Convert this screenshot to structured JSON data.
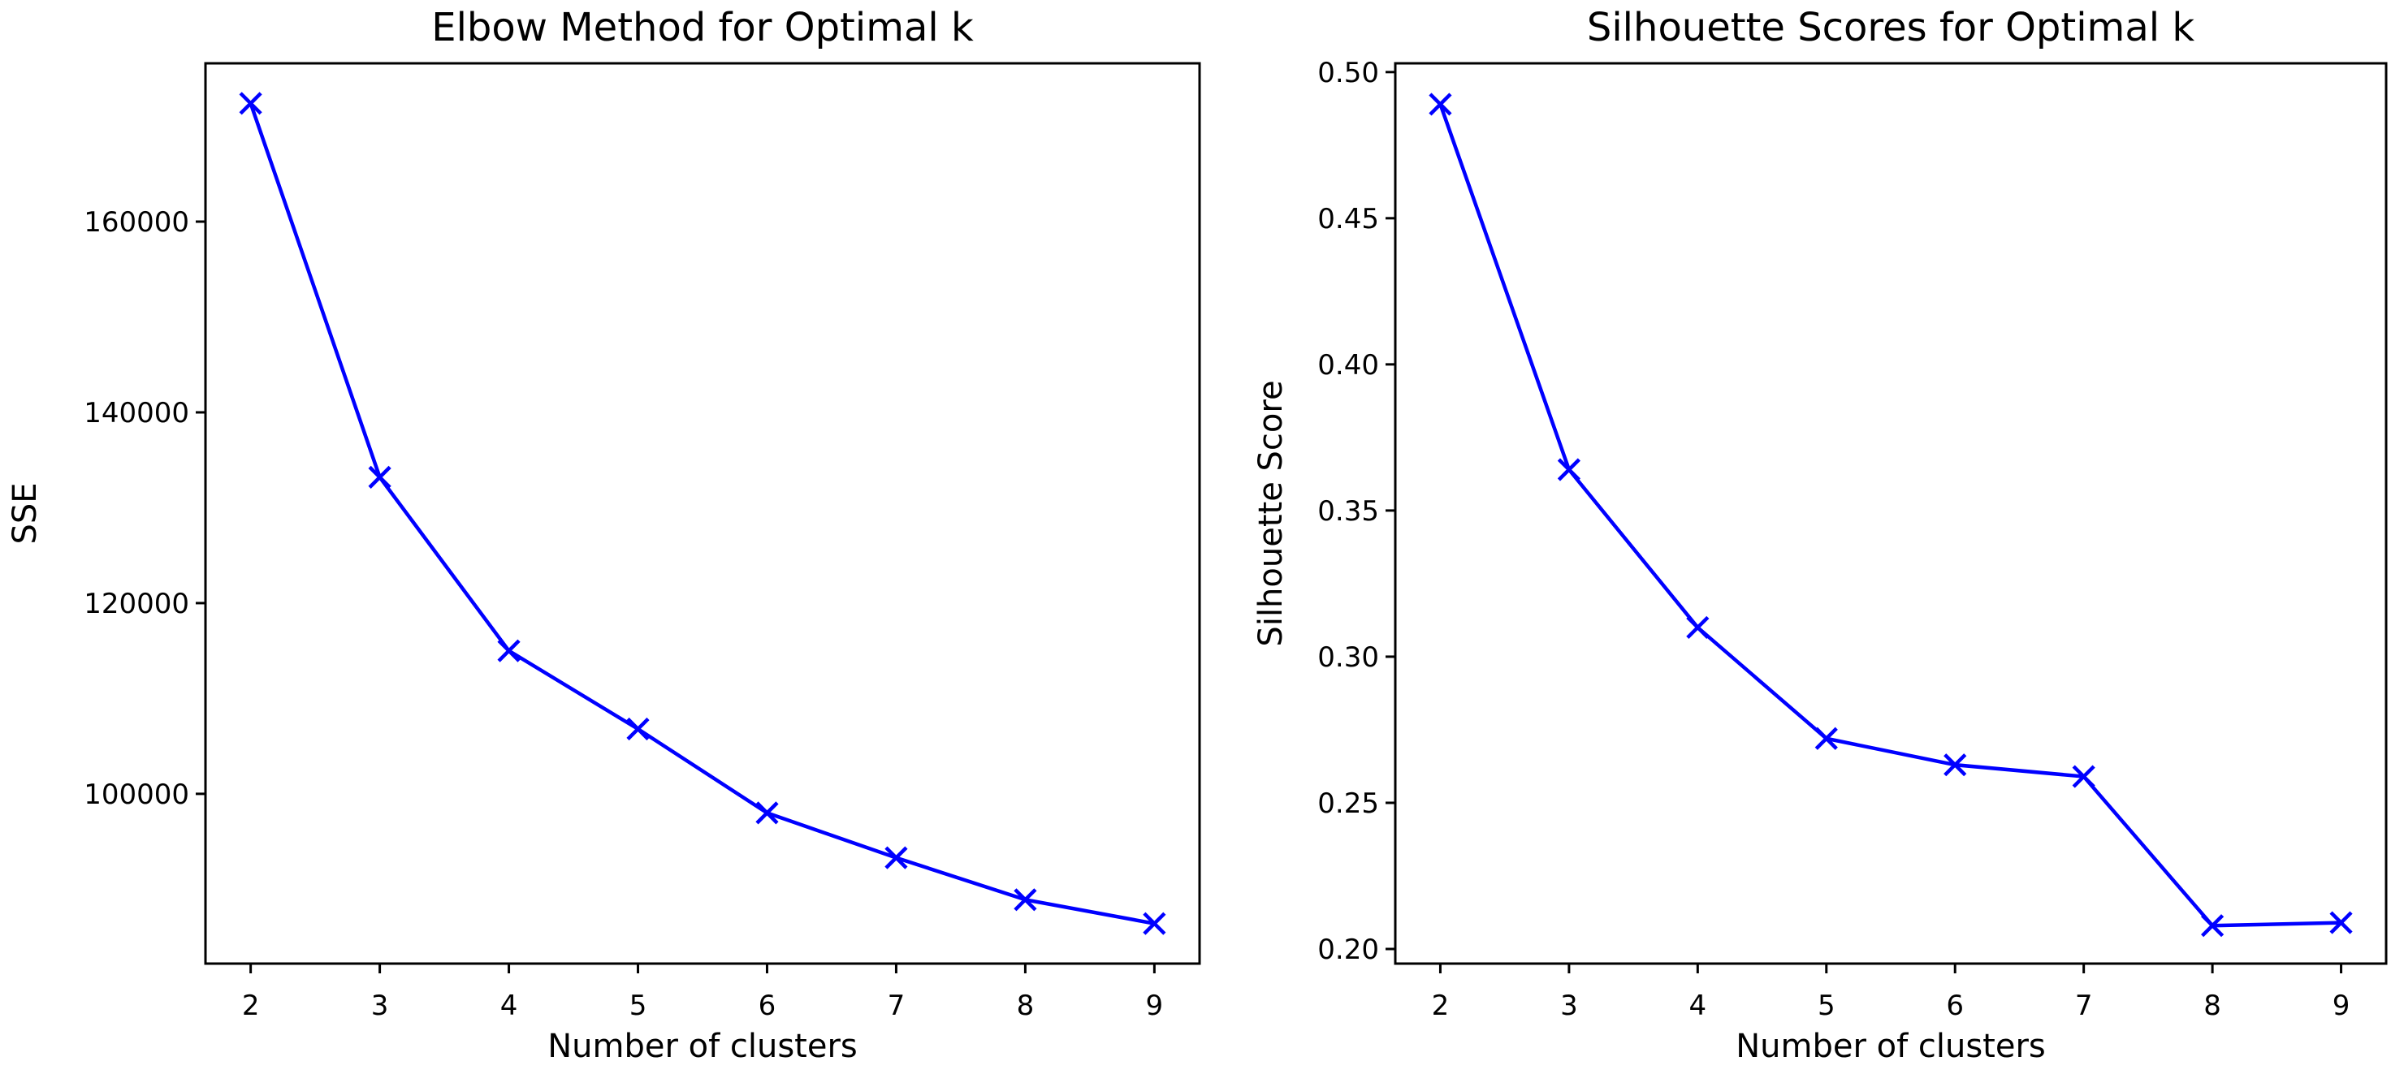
{
  "figure": {
    "background": "#ffffff",
    "text_color": "#000000",
    "spine_color": "#000000"
  },
  "chart_data": [
    {
      "type": "line",
      "title": "Elbow Method for Optimal k",
      "xlabel": "Number of clusters",
      "ylabel": "SSE",
      "legend": null,
      "grid": false,
      "line_color": "#0000ff",
      "marker": "x",
      "x": [
        2,
        3,
        4,
        5,
        6,
        7,
        8,
        9
      ],
      "y": [
        172400,
        133200,
        115000,
        106800,
        98000,
        93300,
        88900,
        86400
      ],
      "xlim": [
        1.65,
        9.35
      ],
      "ylim": [
        82200,
        176600
      ],
      "xticks": [
        2,
        3,
        4,
        5,
        6,
        7,
        8,
        9
      ],
      "xtick_labels": [
        "2",
        "3",
        "4",
        "5",
        "6",
        "7",
        "8",
        "9"
      ],
      "yticks": [
        100000,
        120000,
        140000,
        160000
      ],
      "ytick_labels": [
        "100000",
        "120000",
        "140000",
        "160000"
      ]
    },
    {
      "type": "line",
      "title": "Silhouette Scores for Optimal k",
      "xlabel": "Number of clusters",
      "ylabel": "Silhouette Score",
      "legend": null,
      "grid": false,
      "line_color": "#0000ff",
      "marker": "x",
      "x": [
        2,
        3,
        4,
        5,
        6,
        7,
        8,
        9
      ],
      "y": [
        0.489,
        0.364,
        0.31,
        0.272,
        0.263,
        0.259,
        0.208,
        0.209
      ],
      "xlim": [
        1.65,
        9.35
      ],
      "ylim": [
        0.195,
        0.503
      ],
      "xticks": [
        2,
        3,
        4,
        5,
        6,
        7,
        8,
        9
      ],
      "xtick_labels": [
        "2",
        "3",
        "4",
        "5",
        "6",
        "7",
        "8",
        "9"
      ],
      "yticks": [
        0.2,
        0.25,
        0.3,
        0.35,
        0.4,
        0.45,
        0.5
      ],
      "ytick_labels": [
        "0.20",
        "0.25",
        "0.30",
        "0.35",
        "0.40",
        "0.45",
        "0.50"
      ]
    }
  ]
}
